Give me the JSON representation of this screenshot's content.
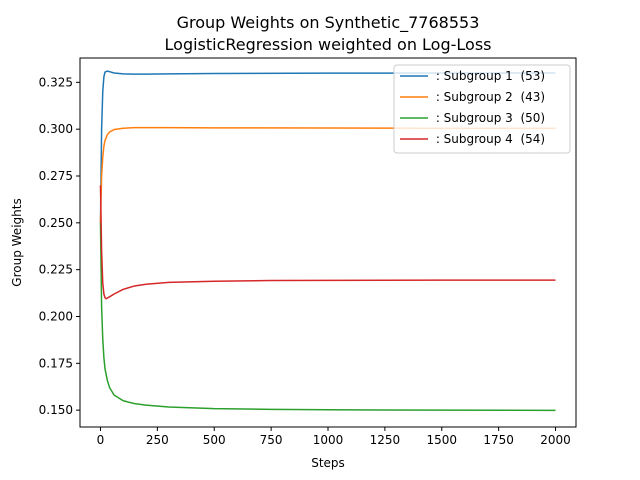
{
  "chart_data": {
    "type": "line",
    "title": [
      "Group Weights on Synthetic_7768553",
      "LogisticRegression weighted on Log-Loss"
    ],
    "xlabel": "Steps",
    "ylabel": "Group Weights",
    "xlim": [
      -90,
      2090
    ],
    "ylim": [
      0.141,
      0.338
    ],
    "xticks": [
      0,
      250,
      500,
      750,
      1000,
      1250,
      1500,
      1750,
      2000
    ],
    "xtick_labels": [
      "0",
      "250",
      "500",
      "750",
      "1000",
      "1250",
      "1500",
      "1750",
      "2000"
    ],
    "yticks": [
      0.15,
      0.175,
      0.2,
      0.225,
      0.25,
      0.275,
      0.3,
      0.325
    ],
    "ytick_labels": [
      "0.150",
      "0.175",
      "0.200",
      "0.225",
      "0.250",
      "0.275",
      "0.300",
      "0.325"
    ],
    "grid": false,
    "legend_position": "top-right",
    "series": [
      {
        "name": " : Subgroup 1  (53)",
        "color": "#1f77b4",
        "x": [
          0,
          5,
          10,
          15,
          20,
          30,
          40,
          60,
          100,
          150,
          200,
          300,
          500,
          1000,
          1500,
          2000
        ],
        "y": [
          0.25,
          0.3,
          0.32,
          0.328,
          0.3305,
          0.331,
          0.3307,
          0.33,
          0.3295,
          0.3294,
          0.3294,
          0.3295,
          0.3297,
          0.3299,
          0.33,
          0.33
        ]
      },
      {
        "name": " : Subgroup 2  (43)",
        "color": "#ff7f0e",
        "x": [
          0,
          5,
          10,
          15,
          20,
          30,
          40,
          60,
          100,
          150,
          200,
          300,
          500,
          1000,
          1500,
          2000
        ],
        "y": [
          0.25,
          0.275,
          0.285,
          0.291,
          0.294,
          0.297,
          0.2985,
          0.2998,
          0.3005,
          0.3008,
          0.3008,
          0.3008,
          0.3007,
          0.3006,
          0.3005,
          0.3005
        ]
      },
      {
        "name": " : Subgroup 3  (50)",
        "color": "#2ca02c",
        "x": [
          0,
          5,
          10,
          15,
          20,
          30,
          40,
          60,
          100,
          150,
          200,
          300,
          500,
          750,
          1000,
          1500,
          2000
        ],
        "y": [
          0.25,
          0.205,
          0.188,
          0.178,
          0.172,
          0.166,
          0.162,
          0.158,
          0.155,
          0.1535,
          0.1527,
          0.1517,
          0.1508,
          0.1504,
          0.1502,
          0.15,
          0.1499
        ]
      },
      {
        "name": " : Subgroup 4  (54)",
        "color": "#d62728",
        "x": [
          0,
          5,
          10,
          15,
          20,
          25,
          30,
          40,
          60,
          100,
          150,
          200,
          300,
          500,
          750,
          1000,
          1500,
          2000
        ],
        "y": [
          0.27,
          0.235,
          0.218,
          0.212,
          0.21,
          0.2095,
          0.2098,
          0.2105,
          0.212,
          0.2145,
          0.2163,
          0.2172,
          0.2182,
          0.2188,
          0.2192,
          0.2193,
          0.2194,
          0.2194
        ]
      }
    ]
  }
}
